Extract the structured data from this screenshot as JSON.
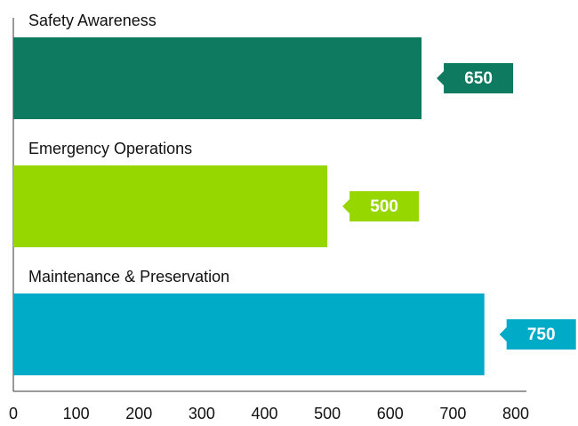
{
  "chart_data": {
    "type": "bar",
    "orientation": "horizontal",
    "categories": [
      "Safety Awareness",
      "Emergency Operations",
      "Maintenance & Preservation"
    ],
    "values": [
      650,
      500,
      750
    ],
    "colors": [
      "#0e7a5f",
      "#97d700",
      "#00abc8"
    ],
    "xlim": [
      0,
      800
    ],
    "xticks": [
      0,
      100,
      200,
      300,
      400,
      500,
      600,
      700,
      800
    ],
    "grid": false
  }
}
